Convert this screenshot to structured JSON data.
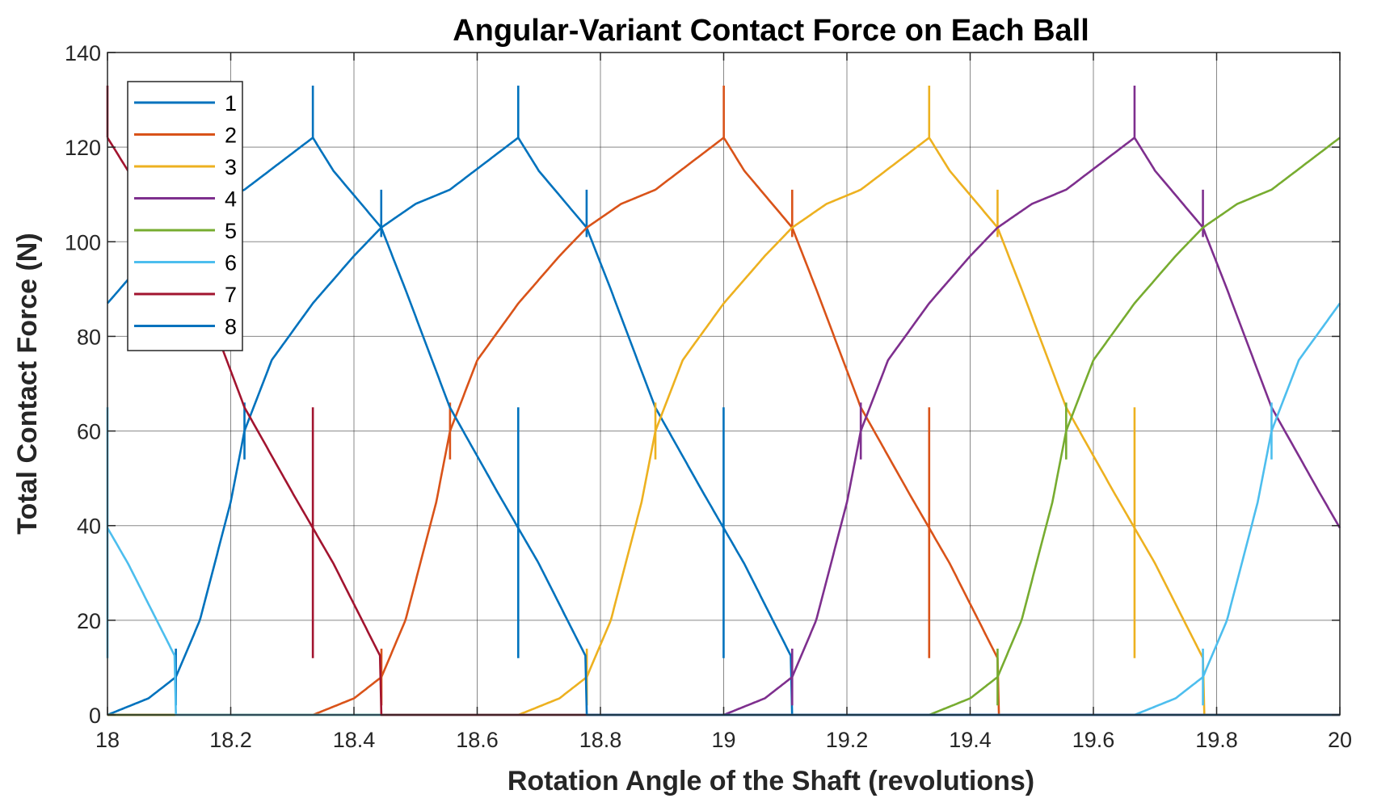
{
  "chart_data": {
    "type": "line",
    "title": "Angular-Variant Contact Force on Each Ball",
    "xlabel": "Rotation Angle of the Shaft (revolutions)",
    "ylabel": "Total Contact Force (N)",
    "xlim": [
      18,
      20
    ],
    "ylim": [
      0,
      140
    ],
    "xticks": [
      "18",
      "18.2",
      "18.4",
      "18.6",
      "18.8",
      "19",
      "19.2",
      "19.4",
      "19.6",
      "19.8",
      "20"
    ],
    "yticks": [
      "0",
      "20",
      "40",
      "60",
      "80",
      "100",
      "120",
      "140"
    ],
    "grid": true,
    "legend_position": "top-left",
    "series": [
      {
        "name": "1",
        "color": "#0072BD",
        "phase": 0
      },
      {
        "name": "2",
        "color": "#D95319",
        "phase": 7
      },
      {
        "name": "3",
        "color": "#EDB120",
        "phase": 6
      },
      {
        "name": "4",
        "color": "#7E2F8E",
        "phase": 5
      },
      {
        "name": "5",
        "color": "#77AC30",
        "phase": 4
      },
      {
        "name": "6",
        "color": "#4DBEEE",
        "phase": 3
      },
      {
        "name": "7",
        "color": "#A2142F",
        "phase": 2
      },
      {
        "name": "8",
        "color": "#0072BD",
        "phase": 1
      }
    ],
    "cycle_profile": {
      "period_revolutions": 2.6667,
      "sub_period_revolutions": 0.3333,
      "loaded_zone": [
        [
          0,
          0
        ],
        [
          0.2,
          3.5
        ],
        [
          0.333,
          8
        ],
        [
          0.45,
          20
        ],
        [
          0.6,
          45
        ],
        [
          0.667,
          60
        ],
        [
          0.8,
          75
        ],
        [
          1.0,
          87
        ],
        [
          1.2,
          97
        ],
        [
          1.333,
          103
        ],
        [
          1.5,
          108
        ],
        [
          1.667,
          111
        ],
        [
          2.0,
          122
        ],
        [
          2.1,
          115
        ],
        [
          2.333,
          103
        ],
        [
          2.45,
          90
        ],
        [
          2.667,
          65
        ],
        [
          2.9,
          47
        ],
        [
          3.1,
          32
        ],
        [
          3.333,
          12
        ]
      ],
      "unloaded_value": 0
    },
    "annotations": {
      "spike_peak": 133,
      "spike_low": 101,
      "lower_spike_peak": 65,
      "lower_spike_low": 12
    }
  }
}
